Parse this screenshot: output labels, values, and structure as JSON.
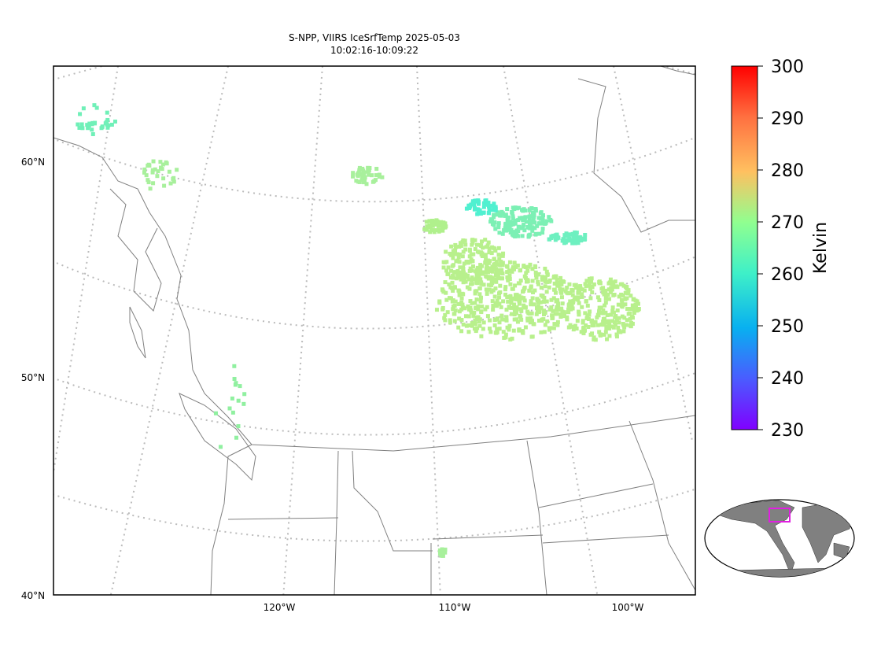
{
  "header": {
    "title": [
      "S-NPP, VIIRS IceSrfTemp 2025-05-03",
      "10:02:16-10:09:22"
    ]
  },
  "map": {
    "lat_labels": [
      "60°N",
      "50°N",
      "40°N"
    ],
    "lon_labels": [
      "120°W",
      "110°W",
      "100°W"
    ]
  },
  "colorbar": {
    "label": "Kelvin",
    "lim": [
      230,
      300
    ],
    "ticks": [
      230,
      240,
      250,
      260,
      270,
      280,
      290,
      300
    ]
  }
}
